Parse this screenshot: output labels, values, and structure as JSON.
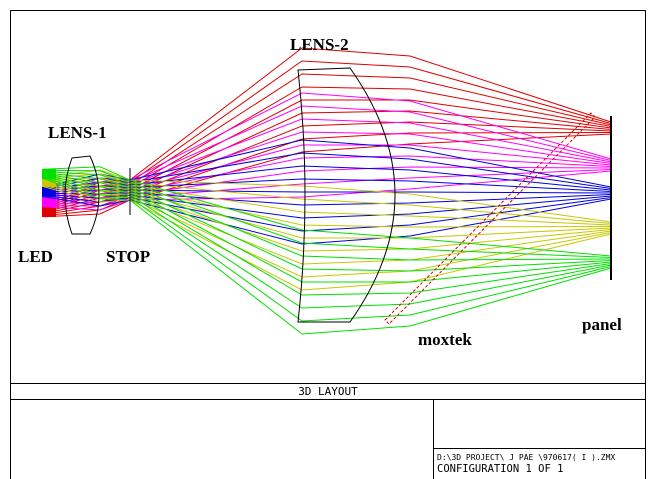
{
  "labels": {
    "lens2": "LENS-2",
    "lens1": "LENS-1",
    "led": "LED",
    "stop": "STOP",
    "moxtek": "moxtek",
    "panel": "panel"
  },
  "footer": {
    "title": "3D LAYOUT",
    "file": "D:\\3D PROJECT\\ J PAE \\970617( I ).ZMX",
    "config": "CONFIGURATION 1 OF 1"
  }
}
